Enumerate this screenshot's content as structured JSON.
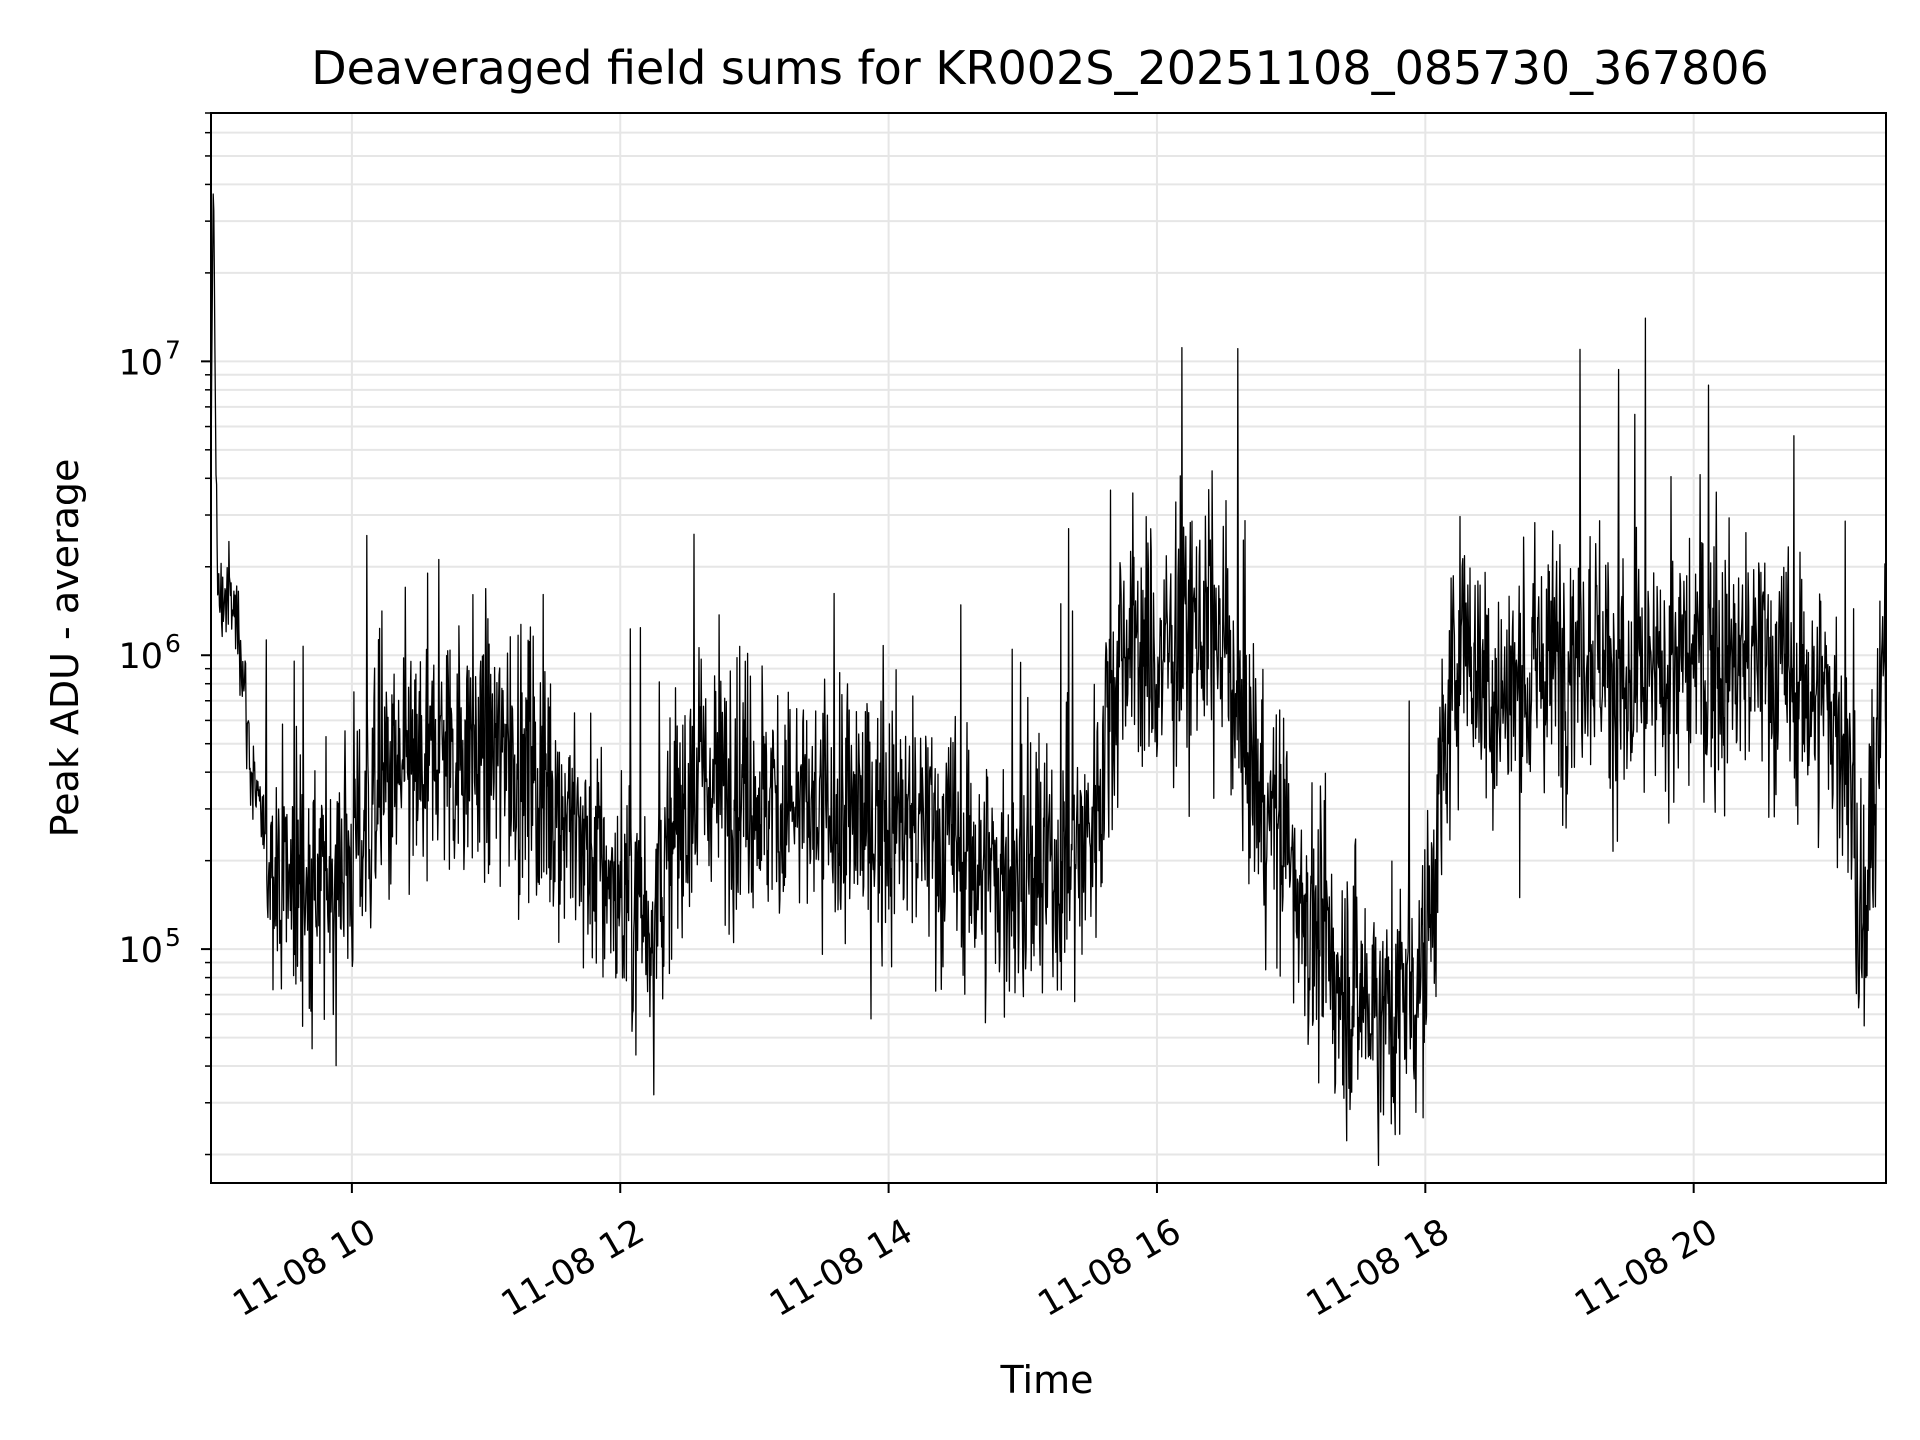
{
  "chart_data": {
    "type": "line",
    "title": "Deaveraged field sums for KR002S_20251108_085730_367806",
    "xlabel": "Time",
    "ylabel": "Peak ADU - average",
    "y_scale": "log",
    "ylim": [
      16000,
      70000000
    ],
    "xlim": [
      "2025-11-08 08:57",
      "2025-11-08 21:26"
    ],
    "grid": true,
    "line_color": "#000000",
    "grid_color": "#e6e6e6",
    "x_ticks": [
      {
        "value": "2025-11-08 10:00",
        "label": "11-08 10"
      },
      {
        "value": "2025-11-08 12:00",
        "label": "11-08 12"
      },
      {
        "value": "2025-11-08 14:00",
        "label": "11-08 14"
      },
      {
        "value": "2025-11-08 16:00",
        "label": "11-08 16"
      },
      {
        "value": "2025-11-08 18:00",
        "label": "11-08 18"
      },
      {
        "value": "2025-11-08 20:00",
        "label": "11-08 20"
      }
    ],
    "y_ticks": [
      {
        "value": 100000,
        "base": "10",
        "exp": "5"
      },
      {
        "value": 1000000,
        "base": "10",
        "exp": "6"
      },
      {
        "value": 10000000,
        "base": "10",
        "exp": "7"
      }
    ],
    "series": [
      {
        "x": [
          "2025-11-08 08:57",
          "2025-11-08 08:58",
          "2025-11-08 09:00",
          "2025-11-08 09:05",
          "2025-11-08 09:10",
          "2025-11-08 09:15",
          "2025-11-08 09:20",
          "2025-11-08 09:30",
          "2025-11-08 09:45",
          "2025-11-08 10:00",
          "2025-11-08 10:15",
          "2025-11-08 10:30",
          "2025-11-08 10:45",
          "2025-11-08 11:00",
          "2025-11-08 11:15",
          "2025-11-08 11:30",
          "2025-11-08 11:45",
          "2025-11-08 12:00",
          "2025-11-08 12:15",
          "2025-11-08 12:30",
          "2025-11-08 12:45",
          "2025-11-08 13:00",
          "2025-11-08 13:15",
          "2025-11-08 13:30",
          "2025-11-08 13:45",
          "2025-11-08 14:00",
          "2025-11-08 14:15",
          "2025-11-08 14:30",
          "2025-11-08 14:45",
          "2025-11-08 15:00",
          "2025-11-08 15:15",
          "2025-11-08 15:30",
          "2025-11-08 15:45",
          "2025-11-08 16:00",
          "2025-11-08 16:15",
          "2025-11-08 16:30",
          "2025-11-08 16:45",
          "2025-11-08 17:00",
          "2025-11-08 17:15",
          "2025-11-08 17:30",
          "2025-11-08 17:45",
          "2025-11-08 18:00",
          "2025-11-08 18:15",
          "2025-11-08 18:30",
          "2025-11-08 18:45",
          "2025-11-08 19:00",
          "2025-11-08 19:15",
          "2025-11-08 19:30",
          "2025-11-08 19:45",
          "2025-11-08 20:00",
          "2025-11-08 20:15",
          "2025-11-08 20:30",
          "2025-11-08 20:45",
          "2025-11-08 21:00",
          "2025-11-08 21:10",
          "2025-11-08 21:15",
          "2025-11-08 21:26"
        ],
        "y": [
          3000000,
          45000000,
          1500000,
          1600000,
          1200000,
          400000,
          250000,
          180000,
          150000,
          220000,
          350000,
          400000,
          500000,
          480000,
          450000,
          350000,
          220000,
          150000,
          130000,
          350000,
          400000,
          350000,
          300000,
          280000,
          280000,
          280000,
          260000,
          220000,
          180000,
          160000,
          180000,
          250000,
          1200000,
          900000,
          1300000,
          1100000,
          350000,
          200000,
          90000,
          70000,
          60000,
          90000,
          1300000,
          700000,
          800000,
          1000000,
          1200000,
          700000,
          800000,
          1000000,
          900000,
          1000000,
          800000,
          700000,
          400000,
          80000,
          1000000
        ]
      }
    ]
  }
}
